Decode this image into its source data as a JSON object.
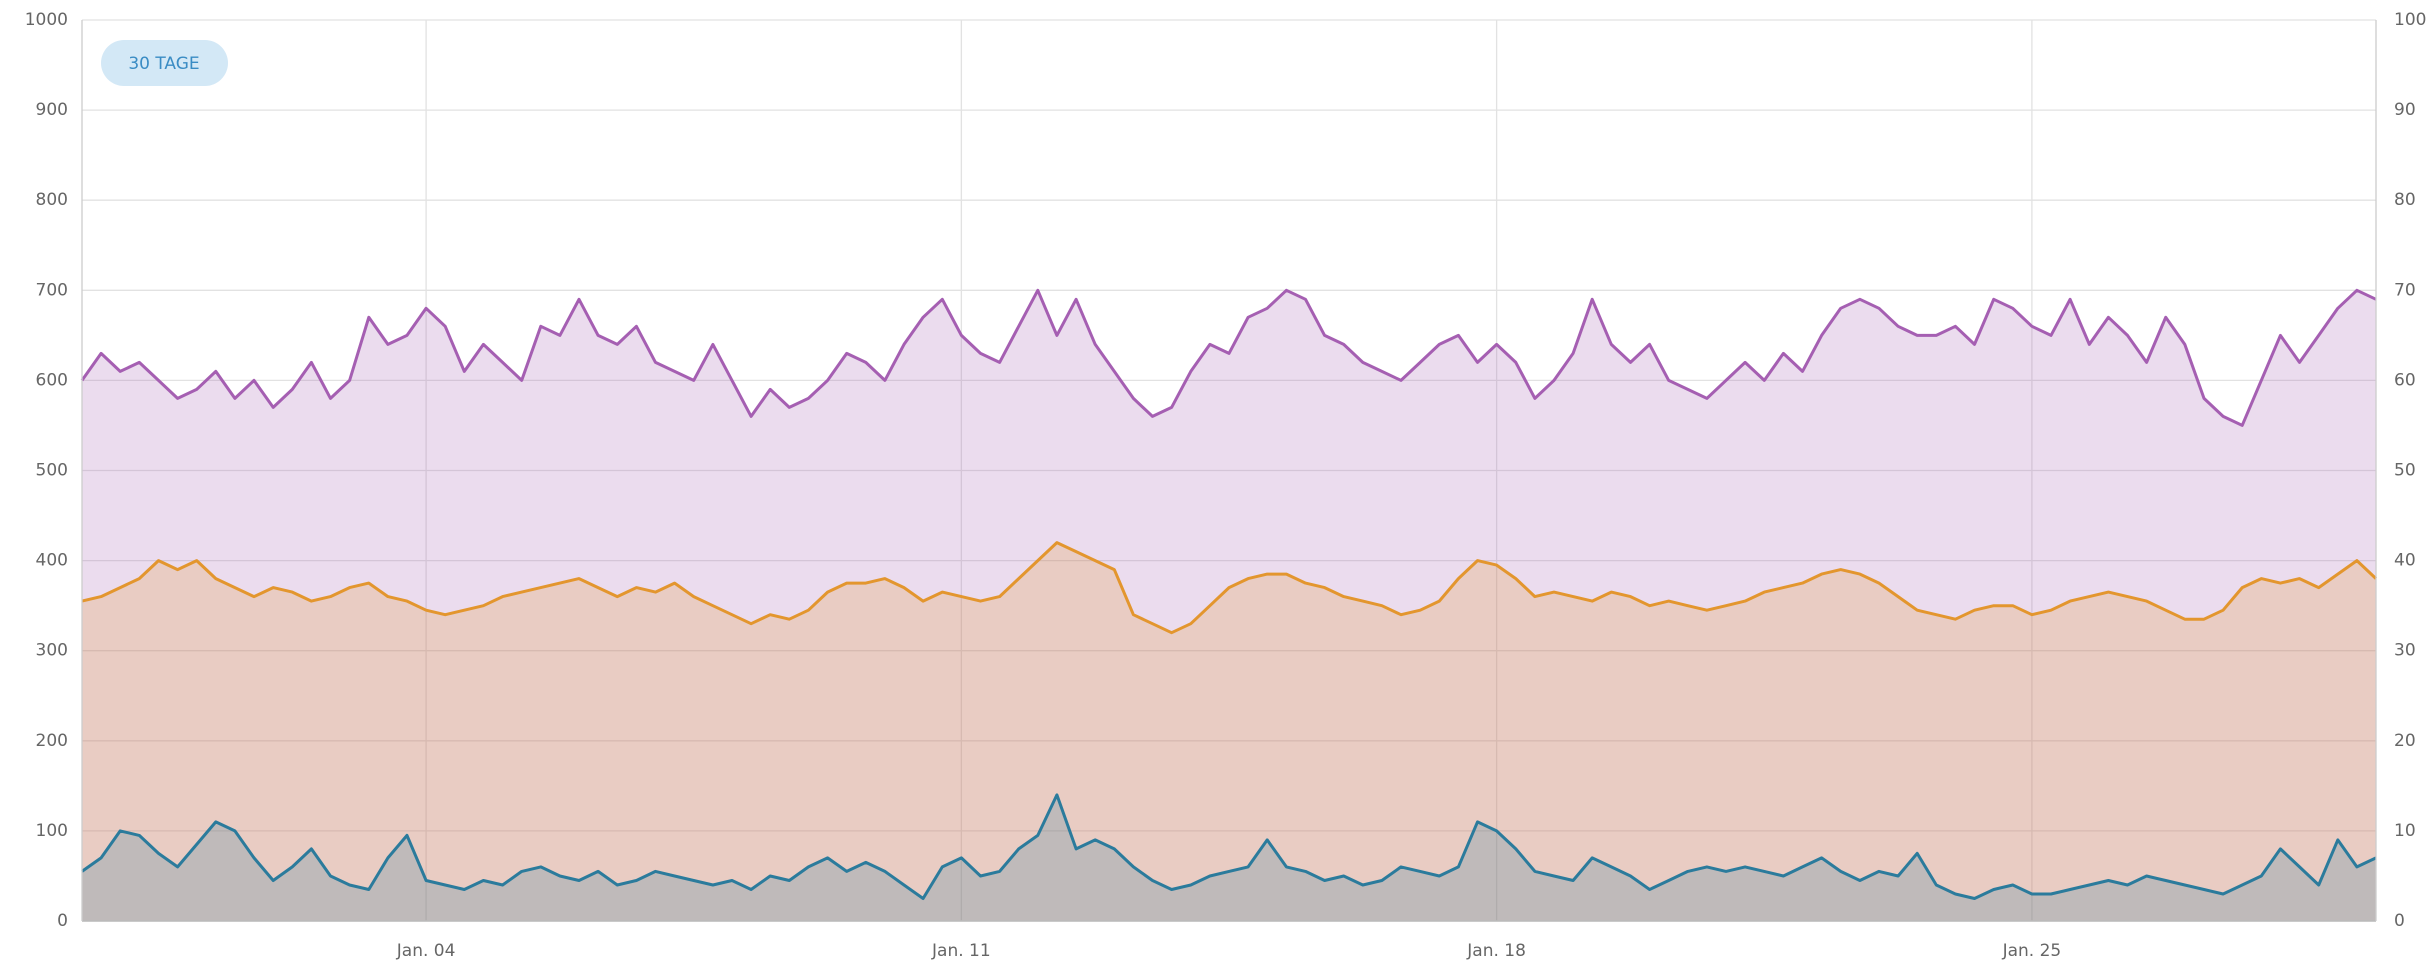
{
  "range_button": "30 TAGE",
  "chart_data": {
    "type": "area",
    "categories": [
      null,
      null,
      null,
      null,
      null,
      null,
      null,
      null,
      null,
      null,
      null,
      null,
      null,
      null,
      null,
      null,
      null,
      null,
      "Jan. 04",
      null,
      null,
      null,
      null,
      null,
      null,
      null,
      null,
      null,
      null,
      null,
      null,
      null,
      null,
      null,
      null,
      null,
      null,
      null,
      null,
      null,
      null,
      null,
      null,
      null,
      null,
      null,
      "Jan. 11",
      null,
      null,
      null,
      null,
      null,
      null,
      null,
      null,
      null,
      null,
      null,
      null,
      null,
      null,
      null,
      null,
      null,
      null,
      null,
      null,
      null,
      null,
      null,
      null,
      null,
      null,
      null,
      "Jan. 18",
      null,
      null,
      null,
      null,
      null,
      null,
      null,
      null,
      null,
      null,
      null,
      null,
      null,
      null,
      null,
      null,
      null,
      null,
      null,
      null,
      null,
      null,
      null,
      null,
      null,
      null,
      null,
      "Jan. 25",
      null,
      null,
      null,
      null,
      null,
      null,
      null,
      null,
      null,
      null,
      null,
      null,
      null,
      null,
      null,
      null,
      null,
      null
    ],
    "series": [
      {
        "color": "#a55fb2",
        "values": [
          600,
          630,
          610,
          620,
          600,
          580,
          590,
          610,
          580,
          600,
          570,
          590,
          620,
          580,
          600,
          670,
          640,
          650,
          680,
          660,
          610,
          640,
          620,
          600,
          660,
          650,
          690,
          650,
          640,
          660,
          620,
          610,
          600,
          640,
          600,
          560,
          590,
          570,
          580,
          600,
          630,
          620,
          600,
          640,
          670,
          690,
          650,
          630,
          620,
          660,
          700,
          650,
          690,
          640,
          610,
          580,
          560,
          570,
          610,
          640,
          630,
          670,
          680,
          700,
          690,
          650,
          640,
          620,
          610,
          600,
          620,
          640,
          650,
          620,
          640,
          620,
          580,
          600,
          630,
          690,
          640,
          620,
          640,
          600,
          590,
          580,
          600,
          620,
          600,
          630,
          610,
          650,
          680,
          690,
          680,
          660,
          650,
          650,
          660,
          640,
          690,
          680,
          660,
          650,
          690,
          640,
          670,
          650,
          620,
          670,
          640,
          580,
          560,
          550,
          600,
          650,
          620,
          650,
          680,
          700,
          690
        ]
      },
      {
        "color": "#e3962e",
        "values": [
          355,
          360,
          370,
          380,
          400,
          390,
          400,
          380,
          370,
          360,
          370,
          365,
          355,
          360,
          370,
          375,
          360,
          355,
          345,
          340,
          345,
          350,
          360,
          365,
          370,
          375,
          380,
          370,
          360,
          370,
          365,
          375,
          360,
          350,
          340,
          330,
          340,
          335,
          345,
          365,
          375,
          375,
          380,
          370,
          355,
          365,
          360,
          355,
          360,
          380,
          400,
          420,
          410,
          400,
          390,
          340,
          330,
          320,
          330,
          350,
          370,
          380,
          385,
          385,
          375,
          370,
          360,
          355,
          350,
          340,
          345,
          355,
          380,
          400,
          395,
          380,
          360,
          365,
          360,
          355,
          365,
          360,
          350,
          355,
          350,
          345,
          350,
          355,
          365,
          370,
          375,
          385,
          390,
          385,
          375,
          360,
          345,
          340,
          335,
          345,
          350,
          350,
          340,
          345,
          355,
          360,
          365,
          360,
          355,
          345,
          335,
          335,
          345,
          370,
          380,
          375,
          380,
          370,
          385,
          400,
          380
        ]
      },
      {
        "color": "#2b7b9c",
        "values": [
          55,
          70,
          100,
          95,
          75,
          60,
          85,
          110,
          100,
          70,
          45,
          60,
          80,
          50,
          40,
          35,
          70,
          95,
          45,
          40,
          35,
          45,
          40,
          55,
          60,
          50,
          45,
          55,
          40,
          45,
          55,
          50,
          45,
          40,
          45,
          35,
          50,
          45,
          60,
          70,
          55,
          65,
          55,
          40,
          25,
          60,
          70,
          50,
          55,
          80,
          95,
          140,
          80,
          90,
          80,
          60,
          45,
          35,
          40,
          50,
          55,
          60,
          90,
          60,
          55,
          45,
          50,
          40,
          45,
          60,
          55,
          50,
          60,
          110,
          100,
          80,
          55,
          50,
          45,
          70,
          60,
          50,
          35,
          45,
          55,
          60,
          55,
          60,
          55,
          50,
          60,
          70,
          55,
          45,
          55,
          50,
          75,
          40,
          30,
          25,
          35,
          40,
          30,
          30,
          35,
          40,
          45,
          40,
          50,
          45,
          40,
          35,
          30,
          40,
          50,
          80,
          60,
          40,
          90,
          60,
          70
        ]
      }
    ],
    "ylim": [
      0,
      1000
    ],
    "yticks": [
      0,
      100,
      200,
      300,
      400,
      500,
      600,
      700,
      800,
      900,
      1000
    ],
    "y2lim": [
      0,
      100
    ],
    "y2ticks": [
      0,
      10,
      20,
      30,
      40,
      50,
      60,
      70,
      80,
      90,
      100
    ],
    "grid": true
  }
}
